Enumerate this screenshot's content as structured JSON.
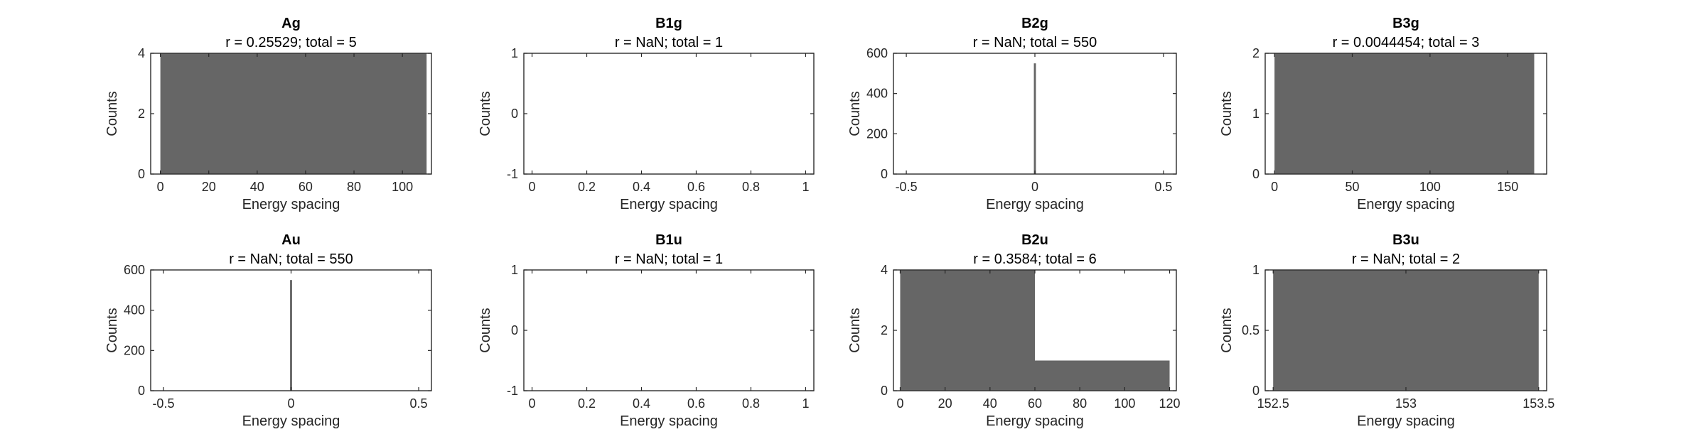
{
  "chart_data": [
    {
      "type": "bar",
      "title": "Ag",
      "subtitle": "r = 0.25529; total = 5",
      "xlabel": "Energy spacing",
      "ylabel": "Counts",
      "xlim": [
        -4,
        112
      ],
      "ylim": [
        0,
        4
      ],
      "xticks": [
        0,
        20,
        40,
        60,
        80,
        100
      ],
      "xtick_labels": [
        "0",
        "20",
        "40",
        "60",
        "80",
        "100"
      ],
      "yticks": [
        0,
        2,
        4
      ],
      "ytick_labels": [
        "0",
        "2",
        "4"
      ],
      "bins": [
        {
          "x0": 0,
          "x1": 110,
          "count": 4
        }
      ]
    },
    {
      "type": "bar",
      "title": "B1g",
      "subtitle": "r = NaN; total = 1",
      "xlabel": "Energy spacing",
      "ylabel": "Counts",
      "xlim": [
        -0.03,
        1.03
      ],
      "ylim": [
        -1,
        1
      ],
      "xticks": [
        0,
        0.2,
        0.4,
        0.6,
        0.8,
        1
      ],
      "xtick_labels": [
        "0",
        "0.2",
        "0.4",
        "0.6",
        "0.8",
        "1"
      ],
      "yticks": [
        -1,
        0,
        1
      ],
      "ytick_labels": [
        "-1",
        "0",
        "1"
      ],
      "bins": []
    },
    {
      "type": "bar",
      "title": "B2g",
      "subtitle": "r = NaN; total = 550",
      "xlabel": "Energy spacing",
      "ylabel": "Counts",
      "xlim": [
        -0.55,
        0.55
      ],
      "ylim": [
        0,
        600
      ],
      "xticks": [
        -0.5,
        0,
        0.5
      ],
      "xtick_labels": [
        "-0.5",
        "0",
        "0.5"
      ],
      "yticks": [
        0,
        200,
        400,
        600
      ],
      "ytick_labels": [
        "0",
        "200",
        "400",
        "600"
      ],
      "bins": [
        {
          "x0": -0.004,
          "x1": 0.004,
          "count": 550
        }
      ]
    },
    {
      "type": "bar",
      "title": "B3g",
      "subtitle": "r = 0.0044454; total = 3",
      "xlabel": "Energy spacing",
      "ylabel": "Counts",
      "xlim": [
        -6,
        175
      ],
      "ylim": [
        0,
        2
      ],
      "xticks": [
        0,
        50,
        100,
        150
      ],
      "xtick_labels": [
        "0",
        "50",
        "100",
        "150"
      ],
      "yticks": [
        0,
        1,
        2
      ],
      "ytick_labels": [
        "0",
        "1",
        "2"
      ],
      "bins": [
        {
          "x0": 0,
          "x1": 167,
          "count": 2
        }
      ]
    },
    {
      "type": "bar",
      "title": "Au",
      "subtitle": "r = NaN; total = 550",
      "xlabel": "Energy spacing",
      "ylabel": "Counts",
      "xlim": [
        -0.55,
        0.55
      ],
      "ylim": [
        0,
        600
      ],
      "xticks": [
        -0.5,
        0,
        0.5
      ],
      "xtick_labels": [
        "-0.5",
        "0",
        "0.5"
      ],
      "yticks": [
        0,
        200,
        400,
        600
      ],
      "ytick_labels": [
        "0",
        "200",
        "400",
        "600"
      ],
      "bins": [
        {
          "x0": -0.004,
          "x1": 0.004,
          "count": 550
        }
      ]
    },
    {
      "type": "bar",
      "title": "B1u",
      "subtitle": "r = NaN; total = 1",
      "xlabel": "Energy spacing",
      "ylabel": "Counts",
      "xlim": [
        -0.03,
        1.03
      ],
      "ylim": [
        -1,
        1
      ],
      "xticks": [
        0,
        0.2,
        0.4,
        0.6,
        0.8,
        1
      ],
      "xtick_labels": [
        "0",
        "0.2",
        "0.4",
        "0.6",
        "0.8",
        "1"
      ],
      "yticks": [
        -1,
        0,
        1
      ],
      "ytick_labels": [
        "-1",
        "0",
        "1"
      ],
      "bins": []
    },
    {
      "type": "bar",
      "title": "B2u",
      "subtitle": "r = 0.3584; total = 6",
      "xlabel": "Energy spacing",
      "ylabel": "Counts",
      "xlim": [
        -3,
        123
      ],
      "ylim": [
        0,
        4
      ],
      "xticks": [
        0,
        20,
        40,
        60,
        80,
        100,
        120
      ],
      "xtick_labels": [
        "0",
        "20",
        "40",
        "60",
        "80",
        "100",
        "120"
      ],
      "yticks": [
        0,
        2,
        4
      ],
      "ytick_labels": [
        "0",
        "2",
        "4"
      ],
      "bins": [
        {
          "x0": 0,
          "x1": 60,
          "count": 4
        },
        {
          "x0": 60,
          "x1": 120,
          "count": 1
        }
      ]
    },
    {
      "type": "bar",
      "title": "B3u",
      "subtitle": "r = NaN; total = 2",
      "xlabel": "Energy spacing",
      "ylabel": "Counts",
      "xlim": [
        152.47,
        153.53
      ],
      "ylim": [
        0,
        1
      ],
      "xticks": [
        152.5,
        153,
        153.5
      ],
      "xtick_labels": [
        "152.5",
        "153",
        "153.5"
      ],
      "yticks": [
        0,
        0.5,
        1
      ],
      "ytick_labels": [
        "0",
        "0.5",
        "1"
      ],
      "bins": [
        {
          "x0": 152.5,
          "x1": 153.5,
          "count": 1
        }
      ]
    }
  ]
}
